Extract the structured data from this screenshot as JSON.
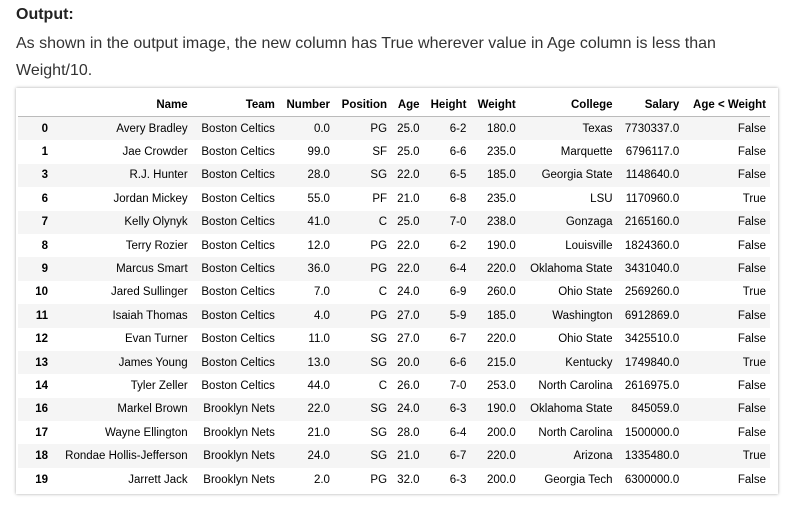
{
  "heading": "Output:",
  "paragraph": "As shown in the output image, the new column has True wherever value in Age column is less than Weight/10.",
  "table": {
    "columns": [
      "",
      "Name",
      "Team",
      "Number",
      "Position",
      "Age",
      "Height",
      "Weight",
      "College",
      "Salary",
      "Age < Weight"
    ],
    "rows": [
      [
        "0",
        "Avery Bradley",
        "Boston Celtics",
        "0.0",
        "PG",
        "25.0",
        "6-2",
        "180.0",
        "Texas",
        "7730337.0",
        "False"
      ],
      [
        "1",
        "Jae Crowder",
        "Boston Celtics",
        "99.0",
        "SF",
        "25.0",
        "6-6",
        "235.0",
        "Marquette",
        "6796117.0",
        "False"
      ],
      [
        "3",
        "R.J. Hunter",
        "Boston Celtics",
        "28.0",
        "SG",
        "22.0",
        "6-5",
        "185.0",
        "Georgia State",
        "1148640.0",
        "False"
      ],
      [
        "6",
        "Jordan Mickey",
        "Boston Celtics",
        "55.0",
        "PF",
        "21.0",
        "6-8",
        "235.0",
        "LSU",
        "1170960.0",
        "True"
      ],
      [
        "7",
        "Kelly Olynyk",
        "Boston Celtics",
        "41.0",
        "C",
        "25.0",
        "7-0",
        "238.0",
        "Gonzaga",
        "2165160.0",
        "False"
      ],
      [
        "8",
        "Terry Rozier",
        "Boston Celtics",
        "12.0",
        "PG",
        "22.0",
        "6-2",
        "190.0",
        "Louisville",
        "1824360.0",
        "False"
      ],
      [
        "9",
        "Marcus Smart",
        "Boston Celtics",
        "36.0",
        "PG",
        "22.0",
        "6-4",
        "220.0",
        "Oklahoma State",
        "3431040.0",
        "False"
      ],
      [
        "10",
        "Jared Sullinger",
        "Boston Celtics",
        "7.0",
        "C",
        "24.0",
        "6-9",
        "260.0",
        "Ohio State",
        "2569260.0",
        "True"
      ],
      [
        "11",
        "Isaiah Thomas",
        "Boston Celtics",
        "4.0",
        "PG",
        "27.0",
        "5-9",
        "185.0",
        "Washington",
        "6912869.0",
        "False"
      ],
      [
        "12",
        "Evan Turner",
        "Boston Celtics",
        "11.0",
        "SG",
        "27.0",
        "6-7",
        "220.0",
        "Ohio State",
        "3425510.0",
        "False"
      ],
      [
        "13",
        "James Young",
        "Boston Celtics",
        "13.0",
        "SG",
        "20.0",
        "6-6",
        "215.0",
        "Kentucky",
        "1749840.0",
        "True"
      ],
      [
        "14",
        "Tyler Zeller",
        "Boston Celtics",
        "44.0",
        "C",
        "26.0",
        "7-0",
        "253.0",
        "North Carolina",
        "2616975.0",
        "False"
      ],
      [
        "16",
        "Markel Brown",
        "Brooklyn Nets",
        "22.0",
        "SG",
        "24.0",
        "6-3",
        "190.0",
        "Oklahoma State",
        "845059.0",
        "False"
      ],
      [
        "17",
        "Wayne Ellington",
        "Brooklyn Nets",
        "21.0",
        "SG",
        "28.0",
        "6-4",
        "200.0",
        "North Carolina",
        "1500000.0",
        "False"
      ],
      [
        "18",
        "Rondae Hollis-Jefferson",
        "Brooklyn Nets",
        "24.0",
        "SG",
        "21.0",
        "6-7",
        "220.0",
        "Arizona",
        "1335480.0",
        "True"
      ],
      [
        "19",
        "Jarrett Jack",
        "Brooklyn Nets",
        "2.0",
        "PG",
        "32.0",
        "6-3",
        "200.0",
        "Georgia Tech",
        "6300000.0",
        "False"
      ]
    ]
  }
}
